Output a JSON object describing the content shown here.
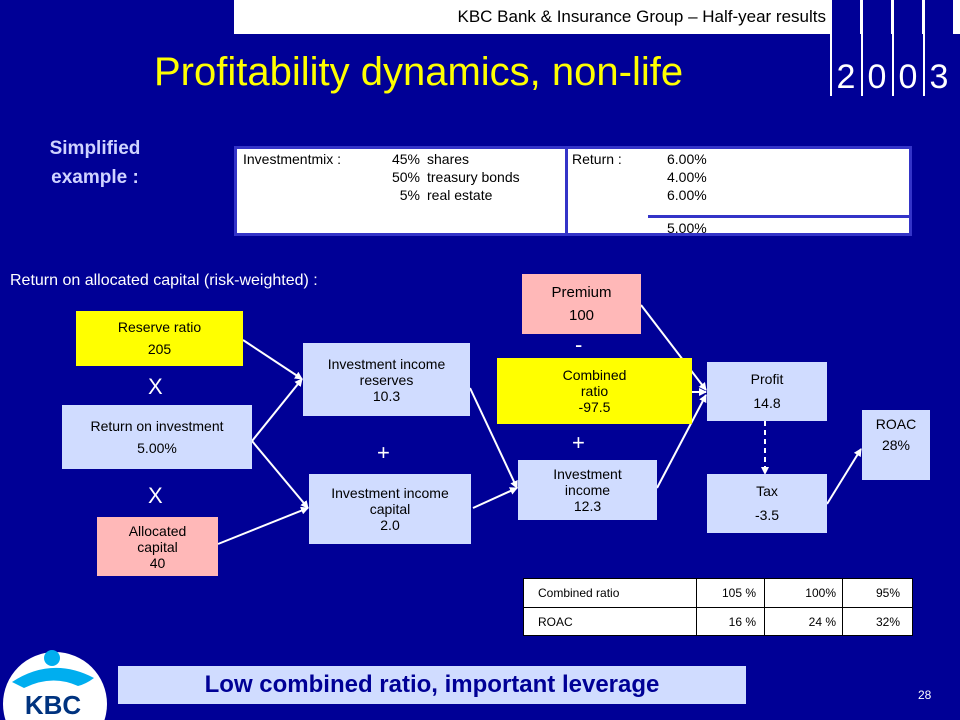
{
  "header": {
    "text": "KBC Bank & Insurance Group – Half-year results",
    "year": [
      "2",
      "0",
      "0",
      "3"
    ]
  },
  "title": "Profitability dynamics, non-life",
  "simplified": {
    "line1": "Simplified",
    "line2": "example :"
  },
  "invest": {
    "mix_label": "Investmentmix :",
    "rows": [
      {
        "pct": "45%",
        "asset": "shares"
      },
      {
        "pct": "50%",
        "asset": "treasury bonds"
      },
      {
        "pct": "5%",
        "asset": "real estate"
      }
    ],
    "return_label": "Return :",
    "returns": [
      "6.00%",
      "4.00%",
      "6.00%"
    ],
    "total": "5.00%"
  },
  "roac_heading": "Return on allocated capital (risk-weighted) :",
  "boxes": {
    "reserve_ratio": {
      "label": "Reserve ratio",
      "value": "205"
    },
    "roi": {
      "label": "Return on investment",
      "value": "5.00%"
    },
    "allocated": {
      "l1": "Allocated",
      "l2": "capital",
      "value": "40"
    },
    "inv_reserves": {
      "l1": "Investment income",
      "l2": "reserves",
      "value": "10.3"
    },
    "inv_capital": {
      "l1": "Investment income",
      "l2": "capital",
      "value": "2.0"
    },
    "premium": {
      "label": "Premium",
      "value": "100"
    },
    "combined": {
      "l1": "Combined",
      "l2": "ratio",
      "value": "-97.5"
    },
    "inv_income": {
      "l1": "Investment",
      "l2": "income",
      "value": "12.3"
    },
    "profit": {
      "label": "Profit",
      "value": "14.8"
    },
    "tax": {
      "label": "Tax",
      "value": "-3.5"
    },
    "roac": {
      "label": "ROAC",
      "value": "28%"
    }
  },
  "operators": {
    "times1": "X",
    "times2": "X",
    "plus1": "+",
    "minus": "-",
    "plus2": "+"
  },
  "sensitivity": {
    "rows": [
      {
        "label": "Combined ratio",
        "v1": "105 %",
        "v2": "100%",
        "v3": "95%"
      },
      {
        "label": "ROAC",
        "v1": "16 %",
        "v2": "24 %",
        "v3": "32%"
      }
    ]
  },
  "banner": "Low combined ratio, important leverage",
  "logo_text": "KBC",
  "page_number": "28",
  "colors": {
    "background": "#000096",
    "title": "#ffff00",
    "box_blue": "#d0dcff",
    "box_pink": "#ffb8b8",
    "box_yellow": "#ffff00"
  }
}
